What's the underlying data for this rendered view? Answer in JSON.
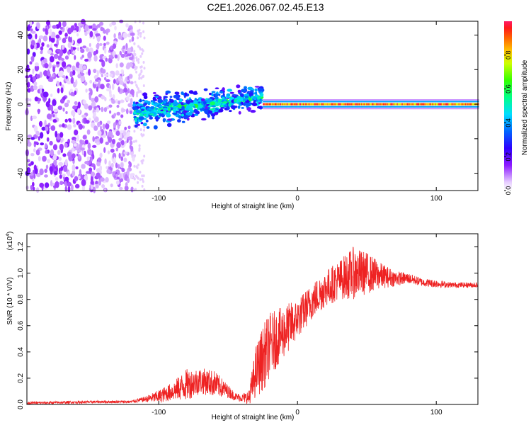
{
  "title": "C2E1.2026.067.02.45.E13",
  "chart_data": [
    {
      "type": "heatmap",
      "title": "C2E1.2026.067.02.45.E13",
      "xlabel": "Height of straight line (km)",
      "ylabel": "Frequency (Hz)",
      "xlim": [
        -195,
        130
      ],
      "ylim": [
        -50,
        48
      ],
      "xticks": [
        -100,
        0,
        100
      ],
      "xtick_labels": [
        "-100",
        "0",
        "100"
      ],
      "yticks": [
        -40,
        -20,
        0,
        20,
        40
      ],
      "ytick_labels": [
        "-40",
        "-20",
        "0",
        "20",
        "40"
      ],
      "colorbar": {
        "label": "Normalized spectral amplitude",
        "range": [
          0.0,
          1.0
        ],
        "ticks": [
          0.0,
          0.2,
          0.4,
          0.6,
          0.8
        ],
        "tick_labels": [
          "0.0",
          "0.2",
          "0.4",
          "0.6",
          "0.8"
        ]
      },
      "regions": [
        {
          "description": "broad scatter, all frequencies",
          "x_range": [
            -195,
            -118
          ],
          "freq_range": [
            -50,
            48
          ],
          "amplitude": 0.1
        },
        {
          "description": "noisy band",
          "x_range": [
            -118,
            -40
          ],
          "center_freq_start": -5,
          "center_freq_end": 4,
          "amplitude": 0.4
        },
        {
          "description": "narrow line",
          "x_range": [
            -25,
            130
          ],
          "center_freq": 0,
          "amplitude": 0.95
        }
      ]
    },
    {
      "type": "line",
      "xlabel": "Height of straight line (km)",
      "ylabel": "SNR (10 * V/V)",
      "multiplier_label": "(x10",
      "multiplier_exp": "4",
      "multiplier_close": ")",
      "xlim": [
        -195,
        130
      ],
      "ylim": [
        0.0,
        1.3
      ],
      "xticks": [
        -100,
        0,
        100
      ],
      "xtick_labels": [
        "-100",
        "0",
        "100"
      ],
      "yticks": [
        0.0,
        0.2,
        0.4,
        0.6,
        0.8,
        1.0,
        1.2
      ],
      "ytick_labels": [
        "0.0",
        "0.2",
        "0.4",
        "0.6",
        "0.8",
        "1.0",
        "1.2"
      ],
      "line_color": "#ee2222",
      "series": [
        {
          "name": "SNR",
          "x": [
            -195,
            -170,
            -140,
            -120,
            -110,
            -100,
            -90,
            -80,
            -70,
            -60,
            -50,
            -45,
            -40,
            -35,
            -30,
            -25,
            -20,
            -15,
            -10,
            -5,
            0,
            10,
            20,
            30,
            40,
            50,
            60,
            70,
            80,
            90,
            100,
            110,
            120,
            130
          ],
          "y": [
            0.01,
            0.015,
            0.02,
            0.02,
            0.04,
            0.06,
            0.1,
            0.15,
            0.18,
            0.16,
            0.1,
            0.06,
            0.05,
            0.05,
            0.25,
            0.35,
            0.45,
            0.5,
            0.55,
            0.6,
            0.65,
            0.78,
            0.88,
            0.95,
            1.0,
            1.0,
            0.98,
            0.96,
            0.96,
            0.93,
            0.92,
            0.91,
            0.91,
            0.91
          ],
          "noise": [
            0.01,
            0.01,
            0.01,
            0.01,
            0.02,
            0.05,
            0.07,
            0.12,
            0.1,
            0.1,
            0.05,
            0.03,
            0.03,
            0.06,
            0.2,
            0.25,
            0.25,
            0.22,
            0.2,
            0.18,
            0.15,
            0.14,
            0.14,
            0.15,
            0.2,
            0.16,
            0.1,
            0.06,
            0.04,
            0.03,
            0.03,
            0.02,
            0.02,
            0.02
          ]
        }
      ]
    }
  ]
}
